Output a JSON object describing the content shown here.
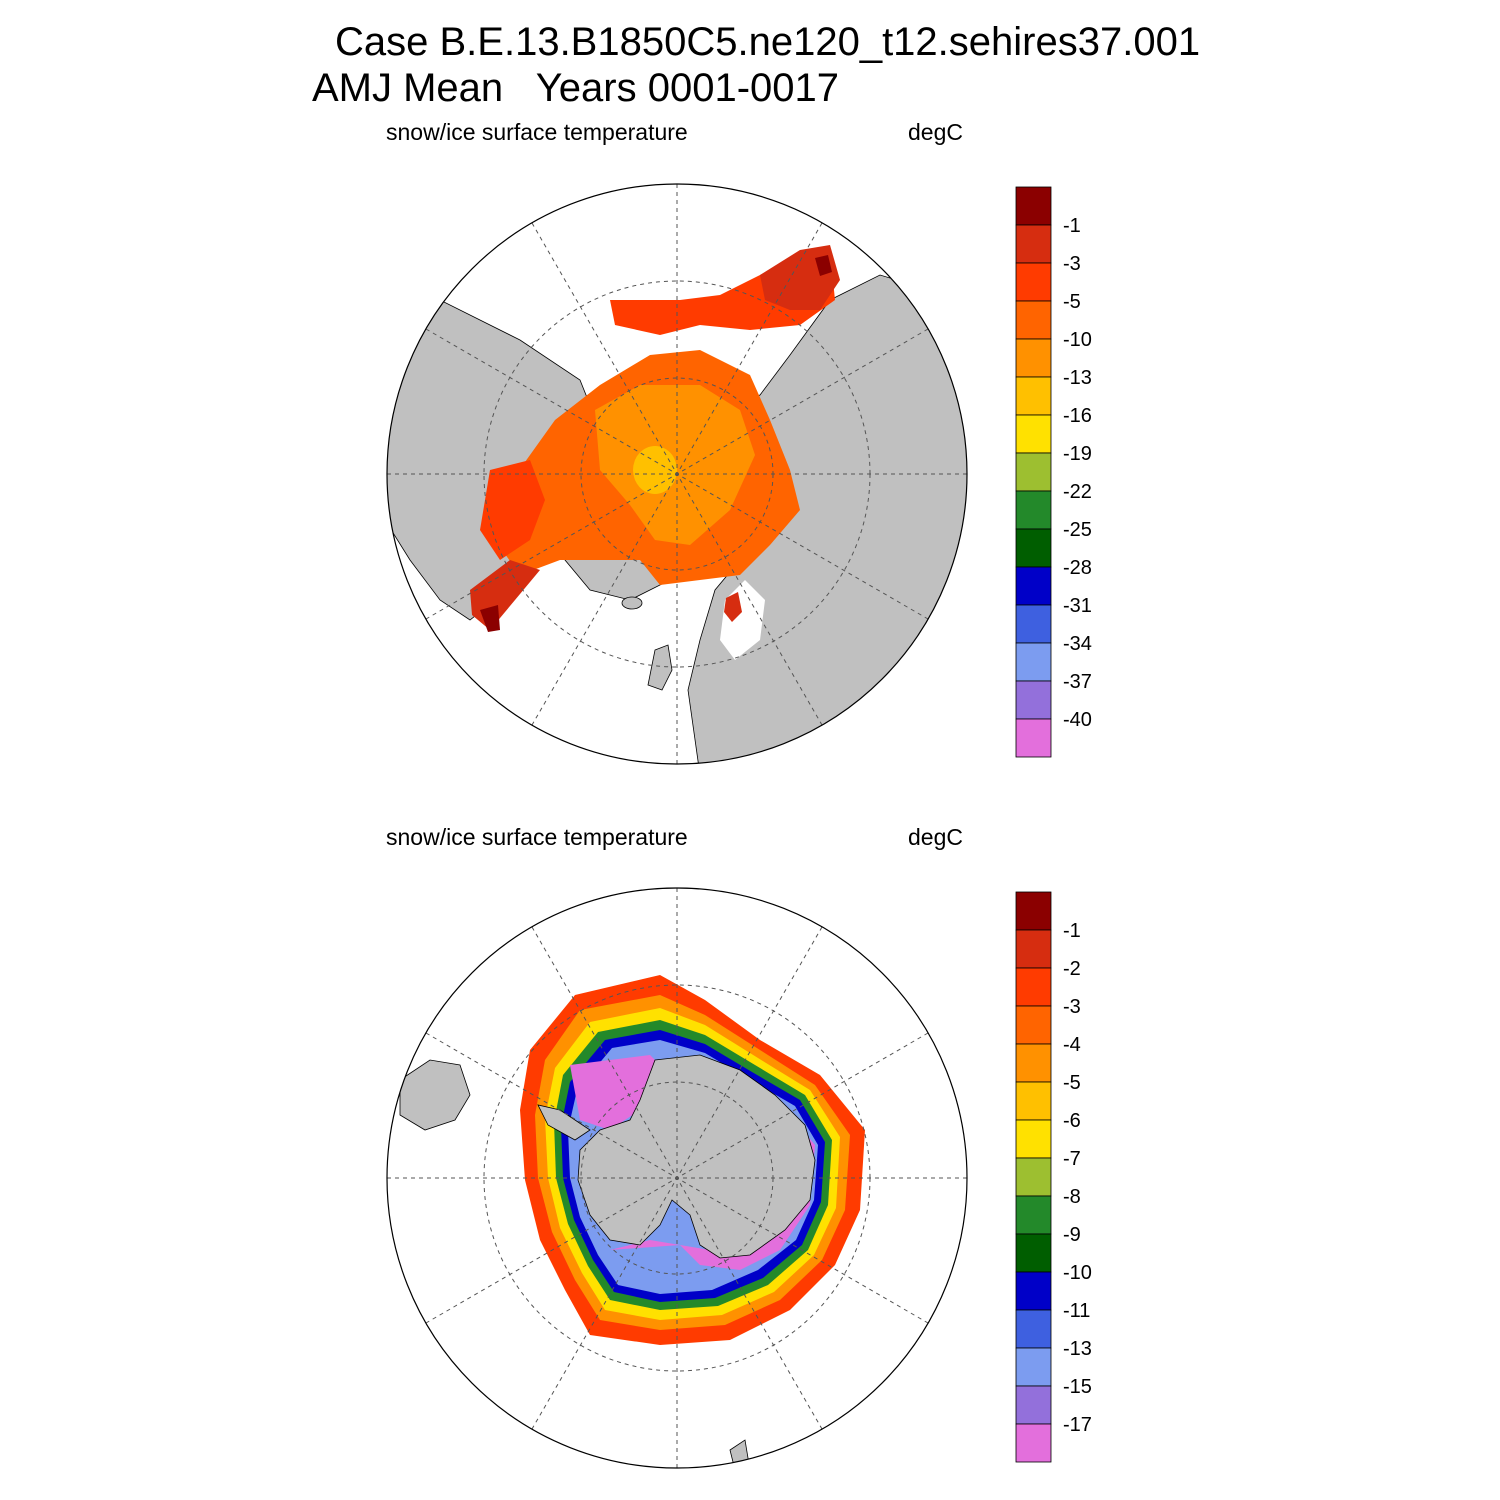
{
  "title": {
    "line1": "Case B.E.13.B1850C5.ne120_t12.sehires37.001",
    "line2": "AMJ Mean   Years 0001-0017"
  },
  "panels": [
    {
      "id": "nh",
      "variable_label": "snow/ice surface temperature",
      "units_label": "degC",
      "hemisphere": "north",
      "colorbar": {
        "colors": [
          "#8b0000",
          "#d62d10",
          "#ff3b00",
          "#ff6400",
          "#ff9100",
          "#ffc000",
          "#ffe100",
          "#9dbf30",
          "#23892a",
          "#005e00",
          "#0000c8",
          "#3e60e0",
          "#7c9cf0",
          "#9370db",
          "#e36fdc"
        ],
        "labels": [
          "-1",
          "-3",
          "-5",
          "-10",
          "-13",
          "-16",
          "-19",
          "-22",
          "-25",
          "-28",
          "-31",
          "-34",
          "-37",
          "-40"
        ]
      }
    },
    {
      "id": "sh",
      "variable_label": "snow/ice surface temperature",
      "units_label": "degC",
      "hemisphere": "south",
      "colorbar": {
        "colors": [
          "#8b0000",
          "#d62d10",
          "#ff3b00",
          "#ff6400",
          "#ff9100",
          "#ffc000",
          "#ffe100",
          "#9dbf30",
          "#23892a",
          "#005e00",
          "#0000c8",
          "#3e60e0",
          "#7c9cf0",
          "#9370db",
          "#e36fdc"
        ],
        "labels": [
          "-1",
          "-2",
          "-3",
          "-4",
          "-5",
          "-6",
          "-7",
          "-8",
          "-9",
          "-10",
          "-11",
          "-13",
          "-15",
          "-17"
        ]
      }
    }
  ],
  "map_colors": {
    "land": "#c0c0c0",
    "ocean": "#ffffff",
    "outline": "#000000"
  }
}
